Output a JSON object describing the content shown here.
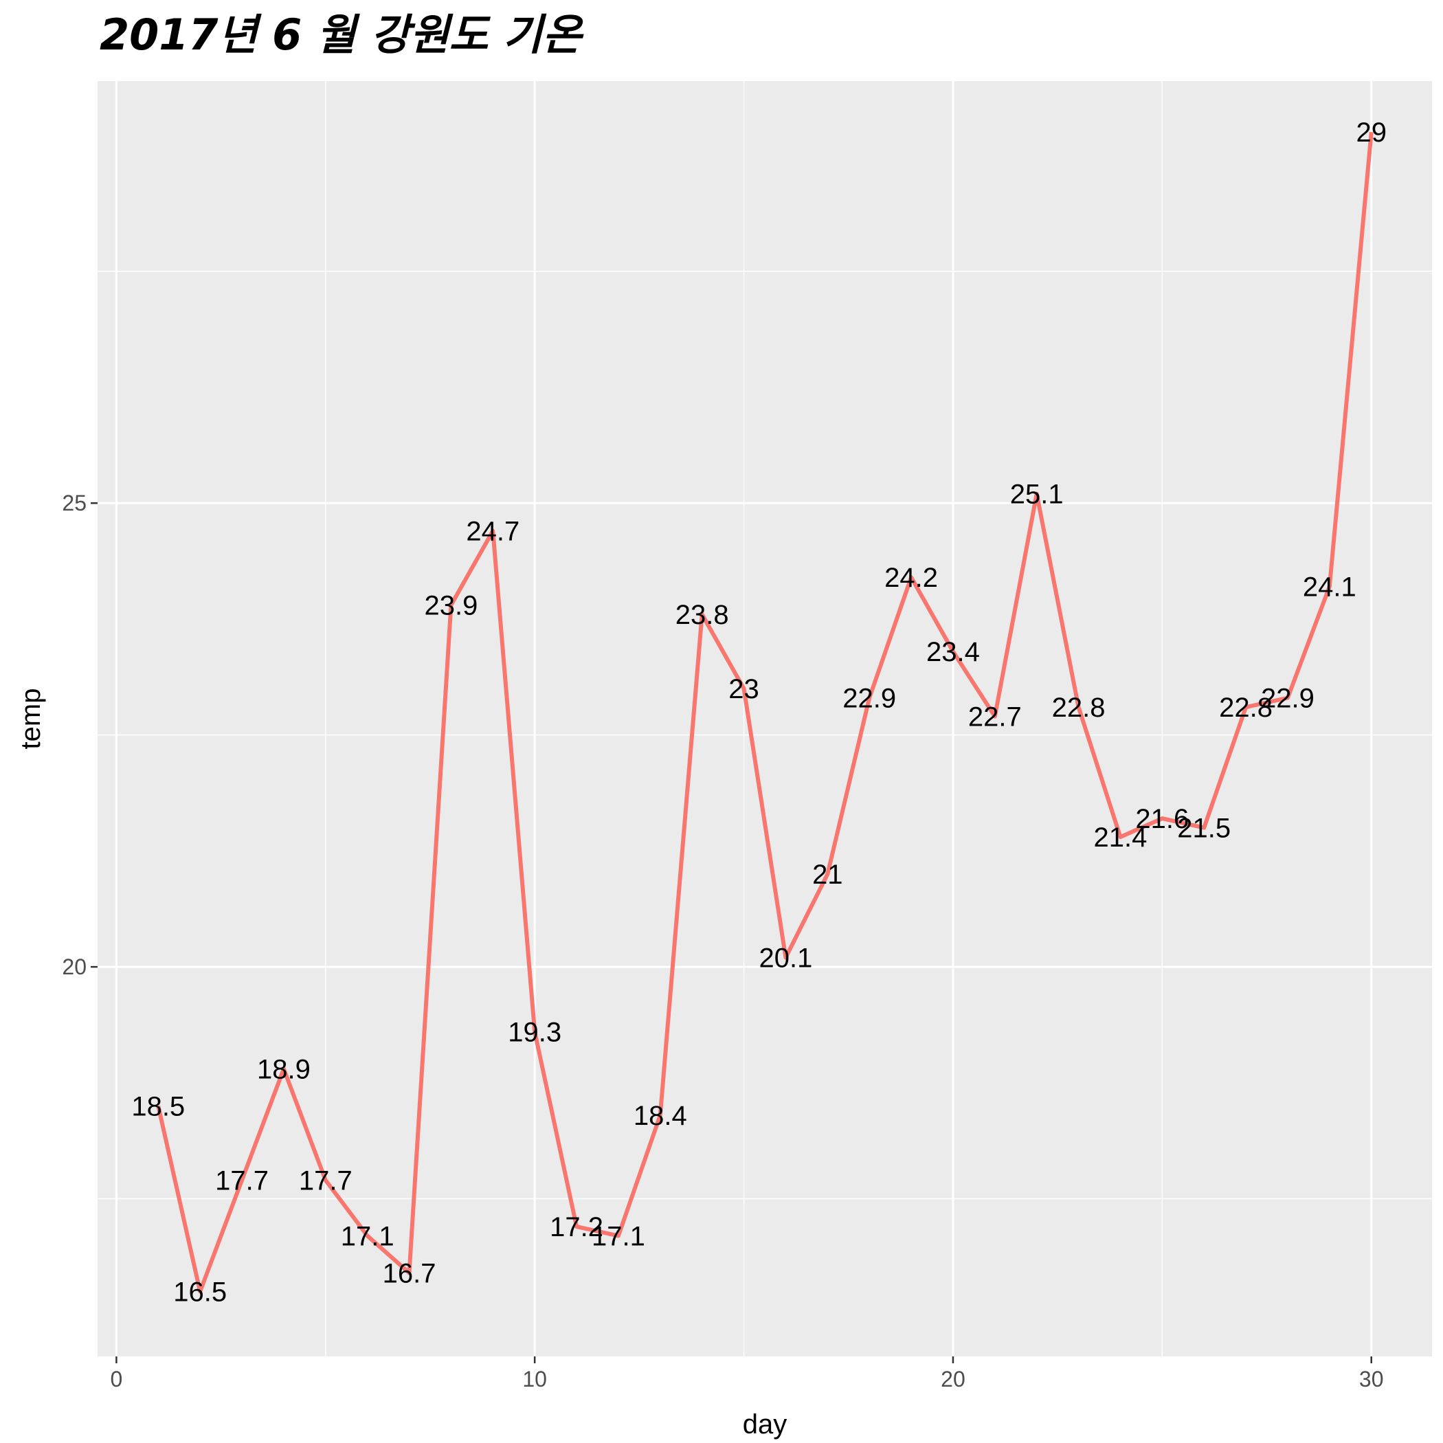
{
  "chart_data": {
    "type": "line",
    "title": "2017년 6 월 강원도 기온",
    "xlabel": "day",
    "ylabel": "temp",
    "x": [
      1,
      2,
      3,
      4,
      5,
      6,
      7,
      8,
      9,
      10,
      11,
      12,
      13,
      14,
      15,
      16,
      17,
      18,
      19,
      20,
      21,
      22,
      23,
      24,
      25,
      26,
      27,
      28,
      29,
      30
    ],
    "series": [
      {
        "values": [
          18.5,
          16.5,
          17.7,
          18.9,
          17.7,
          17.1,
          16.7,
          23.9,
          24.7,
          19.3,
          17.2,
          17.1,
          18.4,
          23.8,
          23,
          20.1,
          21,
          22.9,
          24.2,
          23.4,
          22.7,
          25.1,
          22.8,
          21.4,
          21.6,
          21.5,
          22.8,
          22.9,
          24.1,
          29
        ],
        "labels": [
          "18.5",
          "16.5",
          "17.7",
          "18.9",
          "17.7",
          "17.1",
          "16.7",
          "23.9",
          "24.7",
          "19.3",
          "17.2",
          "17.1",
          "18.4",
          "23.8",
          "23",
          "20.1",
          "21",
          "22.9",
          "24.2",
          "23.4",
          "22.7",
          "25.1",
          "22.8",
          "21.4",
          "21.6",
          "21.5",
          "22.8",
          "22.9",
          "24.1",
          "29"
        ],
        "color": "#F8766D"
      }
    ],
    "xlim": [
      -0.45,
      31.45
    ],
    "ylim": [
      15.8,
      29.55
    ],
    "xticks": [
      0,
      10,
      20,
      30
    ],
    "xtick_labels": [
      "0",
      "10",
      "20",
      "30"
    ],
    "yticks": [
      20,
      25
    ],
    "ytick_labels": [
      "20",
      "25"
    ],
    "x_minor_ticks": [
      5,
      15,
      25
    ],
    "y_minor_ticks": [
      17.5,
      22.5,
      27.5
    ],
    "grid": true,
    "panel_background": "#EBEBEB",
    "grid_color": "#FFFFFF"
  }
}
